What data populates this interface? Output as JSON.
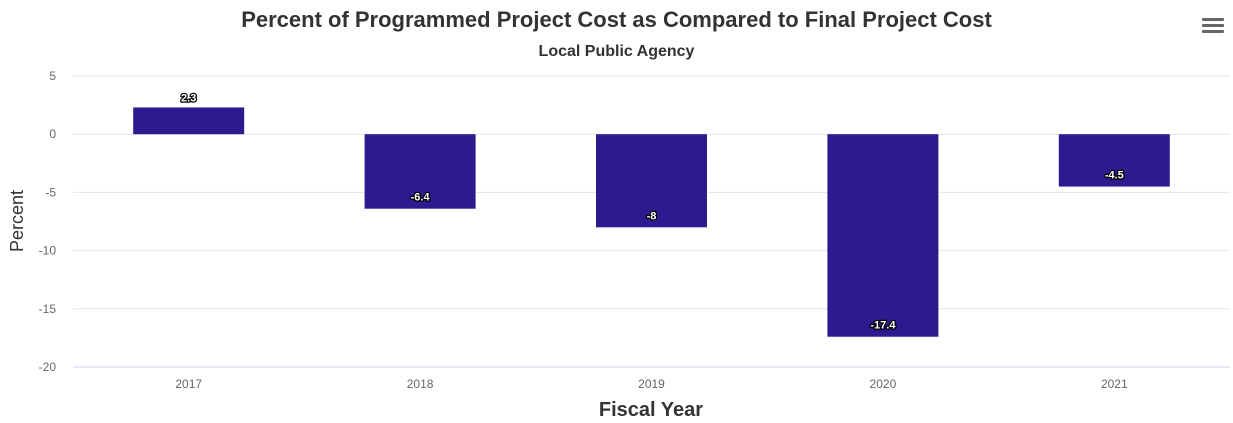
{
  "chart_data": {
    "type": "bar",
    "title": "Percent of Programmed Project Cost as Compared to Final Project Cost",
    "subtitle": "Local Public Agency",
    "xlabel": "Fiscal Year",
    "ylabel": "Percent",
    "categories": [
      "2017",
      "2018",
      "2019",
      "2020",
      "2021"
    ],
    "values": [
      2.3,
      -6.4,
      -8,
      -17.4,
      -4.5
    ],
    "data_labels": [
      "2.3",
      "-6.4",
      "-8",
      "-17.4",
      "-4.5"
    ],
    "ylim": [
      -20,
      5
    ],
    "yticks": [
      5,
      0,
      -5,
      -10,
      -15,
      -20
    ],
    "grid": true,
    "bar_color": "#2e1a8e"
  },
  "menu": {
    "icon": "hamburger-menu-icon"
  }
}
